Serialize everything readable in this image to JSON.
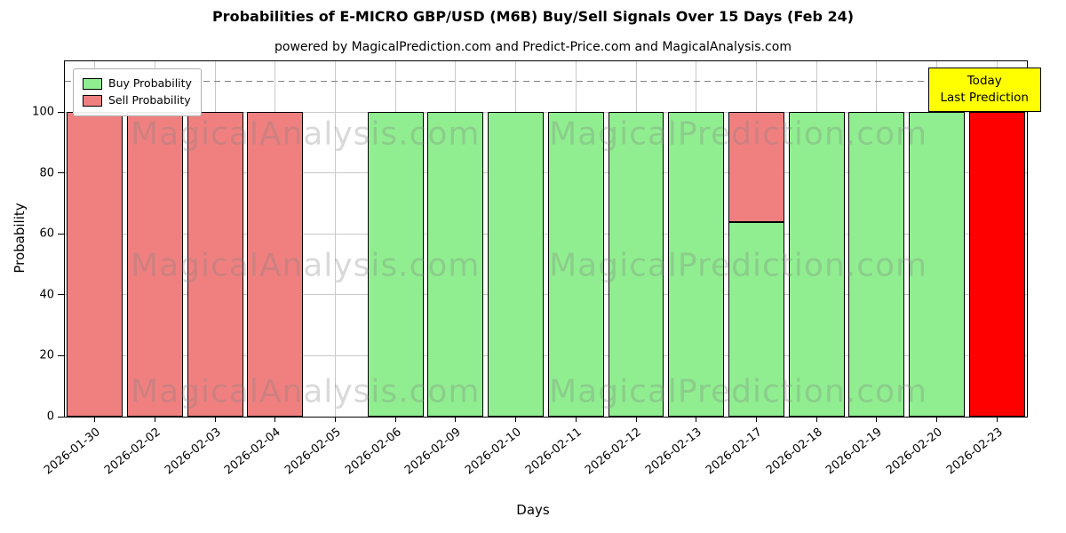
{
  "chart_data": {
    "type": "bar",
    "stacked": true,
    "title": "Probabilities of E-MICRO GBP/USD (M6B) Buy/Sell Signals Over 15 Days (Feb 24)",
    "subtitle": "powered by MagicalPrediction.com and Predict-Price.com and MagicalAnalysis.com",
    "xlabel": "Days",
    "ylabel": "Probability",
    "ylim": [
      0,
      116.67
    ],
    "yticks": [
      0,
      20,
      40,
      60,
      80,
      100
    ],
    "dashed_line_y": 110,
    "grid": true,
    "categories": [
      "2026-01-30",
      "2026-02-02",
      "2026-02-03",
      "2026-02-04",
      "2026-02-05",
      "2026-02-06",
      "2026-02-09",
      "2026-02-10",
      "2026-02-11",
      "2026-02-12",
      "2026-02-13",
      "2026-02-17",
      "2026-02-18",
      "2026-02-19",
      "2026-02-20",
      "2026-02-23"
    ],
    "series": [
      {
        "name": "Buy Probability",
        "color": "#90EE90",
        "values": [
          0,
          0,
          0,
          0,
          0,
          100,
          100,
          100,
          100,
          100,
          100,
          64,
          100,
          100,
          100,
          0
        ]
      },
      {
        "name": "Sell Probability",
        "color": "#F08080",
        "values": [
          100,
          100,
          100,
          100,
          0,
          0,
          0,
          0,
          0,
          0,
          0,
          36,
          0,
          0,
          0,
          0
        ]
      },
      {
        "name": "Today Last Prediction",
        "color": "#FF0000",
        "values": [
          0,
          0,
          0,
          0,
          0,
          0,
          0,
          0,
          0,
          0,
          0,
          0,
          0,
          0,
          0,
          100
        ]
      }
    ],
    "legend": {
      "position": "upper left",
      "entries": [
        {
          "label": "Buy Probability",
          "color": "#90EE90"
        },
        {
          "label": "Sell Probability",
          "color": "#F08080"
        }
      ]
    },
    "annotation": {
      "line1": "Today",
      "line2": "Last Prediction",
      "bg": "#FFFF00"
    },
    "watermarks": [
      "MagicalAnalysis.com",
      "MagicalPrediction.com"
    ],
    "colors": {
      "grid": "#c9c9c9",
      "dashed_line": "#7f7f7f",
      "bar_edge": "#000000",
      "background": "#ffffff",
      "watermark": "rgba(128,128,128,0.30)"
    }
  }
}
